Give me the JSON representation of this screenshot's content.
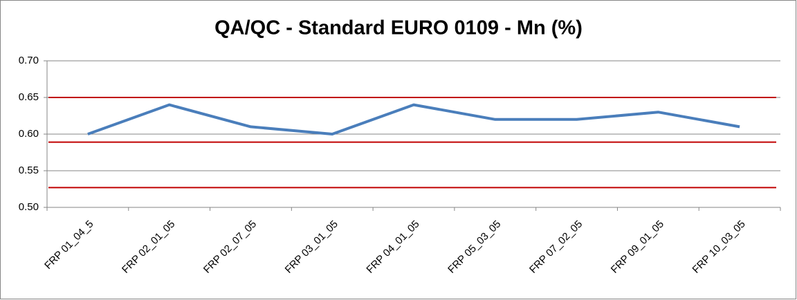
{
  "chart_data": {
    "type": "line",
    "title": "QA/QC - Standard EURO 0109 - Mn (%)",
    "categories": [
      "FRP 01_04_5",
      "FRP 02_01_05",
      "FRP 02_07_05",
      "FRP 03_01_05",
      "FRP 04_01_05",
      "FRP 05_03_05",
      "FRP 07_02_05",
      "FRP 09_01_05",
      "FRP 10_03_05"
    ],
    "series": [
      {
        "color": "#4a7ebb",
        "values": [
          0.6,
          0.64,
          0.61,
          0.6,
          0.64,
          0.62,
          0.62,
          0.63,
          0.61
        ]
      }
    ],
    "hlines": [
      0.65,
      0.589,
      0.527
    ],
    "hline_color": "#c00000",
    "ylim": [
      0.5,
      0.7
    ],
    "yticks": [
      {
        "value": 0.5,
        "label": "0.50"
      },
      0.55,
      {
        "value": 0.6,
        "label": "0.60"
      },
      0.65,
      {
        "value": 0.7,
        "label": "0.70"
      }
    ],
    "grid": true
  }
}
